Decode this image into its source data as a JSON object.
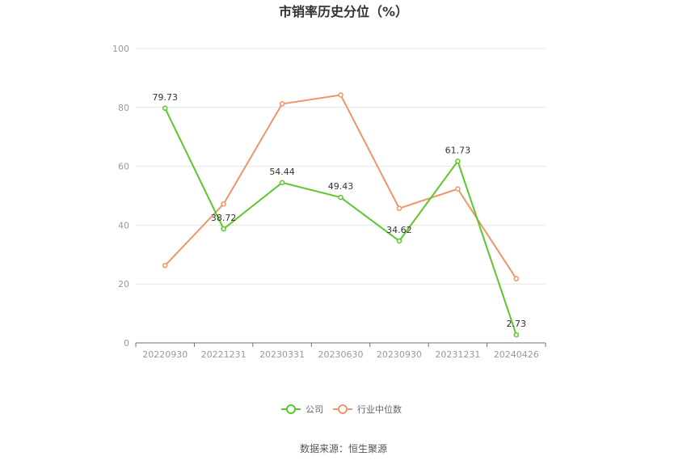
{
  "chart_data": {
    "type": "line",
    "title": "市销率历史分位（%）",
    "categories": [
      "20220930",
      "20221231",
      "20230331",
      "20230630",
      "20230930",
      "20231231",
      "20240426"
    ],
    "y_ticks": [
      "0",
      "20",
      "40",
      "60",
      "80",
      "100"
    ],
    "ylim": [
      0,
      100
    ],
    "grid": true,
    "legend_position": "bottom",
    "series": [
      {
        "name": "公司",
        "color": "#5cc72c",
        "values": [
          79.73,
          38.72,
          54.44,
          49.43,
          34.62,
          61.73,
          2.73
        ],
        "labels": [
          "79.73",
          "38.72",
          "54.44",
          "49.43",
          "34.62",
          "61.73",
          "2.73"
        ]
      },
      {
        "name": "行业中位数",
        "color": "#f0956a",
        "values": [
          26.3,
          47.2,
          81.2,
          84.2,
          45.7,
          52.3,
          21.8
        ]
      }
    ],
    "source": "数据来源：恒生聚源"
  }
}
